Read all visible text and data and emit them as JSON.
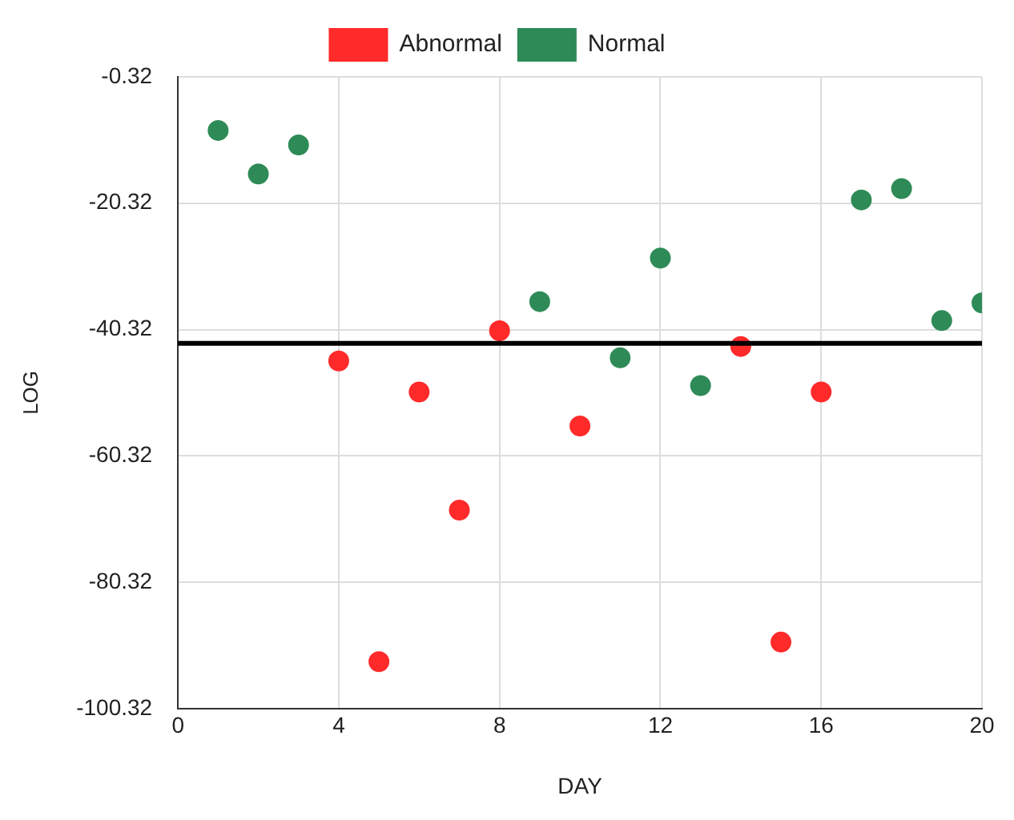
{
  "chart_data": {
    "type": "scatter",
    "xlabel": "DAY",
    "ylabel": "LOG",
    "series": [
      {
        "name": "Abnormal",
        "color": "#ff2a2a",
        "x": [
          4,
          5,
          6,
          7,
          8,
          10,
          14,
          15,
          16
        ],
        "values": [
          -45.3,
          -92.9,
          -50.2,
          -68.9,
          -40.5,
          -55.6,
          -43.0,
          -89.8,
          -50.2
        ]
      },
      {
        "name": "Normal",
        "color": "#2e8b57",
        "x": [
          1,
          2,
          3,
          9,
          11,
          12,
          13,
          17,
          18,
          19,
          20
        ],
        "values": [
          -8.8,
          -15.7,
          -11.1,
          -35.9,
          -44.8,
          -29.0,
          -49.2,
          -19.8,
          -18.0,
          -38.9,
          -36.1
        ]
      }
    ],
    "xlim": [
      0,
      20
    ],
    "xticks": [
      0,
      4,
      8,
      12,
      16,
      20
    ],
    "ylim": [
      -100.32,
      -0.32
    ],
    "yticks": [
      -100.32,
      -80.32,
      -60.32,
      -40.32,
      -20.32,
      -0.32
    ],
    "ref_lines": [
      {
        "axis": "y",
        "value": -42.5,
        "color": "#000000"
      }
    ],
    "grid": true,
    "legend": "top",
    "marker": "circle"
  }
}
